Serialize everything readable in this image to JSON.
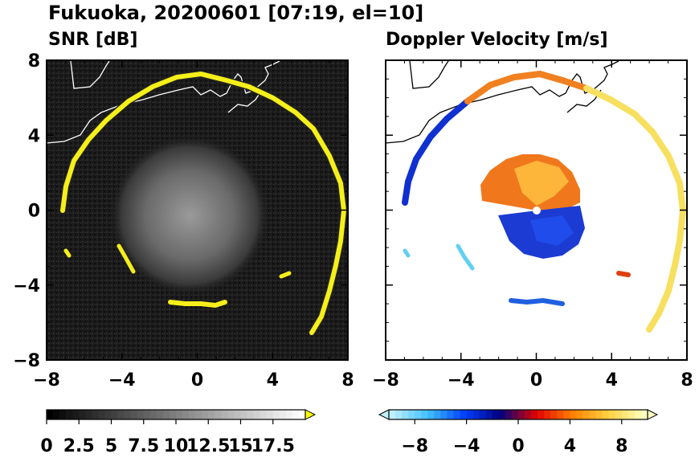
{
  "figure": {
    "title": "Fukuoka, 20200601 [07:19, el=10]"
  },
  "chart_data": [
    {
      "type": "heatmap",
      "title": "SNR [dB]",
      "x_range": [
        -8,
        8
      ],
      "y_range": [
        -8,
        8
      ],
      "x_ticks": [
        -8,
        -4,
        0,
        4,
        8
      ],
      "y_ticks": [
        8,
        4,
        0,
        -4,
        -8
      ],
      "colorbar": {
        "min": 0,
        "max": 20,
        "tick_values": [
          0,
          2.5,
          5,
          7.5,
          10,
          12.5,
          15,
          17.5
        ],
        "tick_labels": [
          "0",
          "2.5",
          "5",
          "7.5",
          "10",
          "12.5",
          "15",
          "17.5"
        ],
        "extend": "max",
        "colors": [
          "#000000",
          "#ffffff",
          "#ffff00"
        ]
      },
      "background_color": "#1a1a1a",
      "echo_color": "#f5ef1a"
    },
    {
      "type": "heatmap",
      "title": "Doppler Velocity [m/s]",
      "x_range": [
        -8,
        8
      ],
      "y_range": [
        -8,
        8
      ],
      "x_ticks": [
        -8,
        -4,
        0,
        4,
        8
      ],
      "y_ticks": [
        8,
        4,
        0,
        -4,
        -8
      ],
      "colorbar": {
        "min": -10,
        "max": 10,
        "tick_values": [
          -8,
          -4,
          0,
          4,
          8
        ],
        "tick_labels": [
          "−8",
          "−4",
          "0",
          "4",
          "8"
        ],
        "extend": "both",
        "colors": [
          "#bff0ff",
          "#40c0ff",
          "#0040ff",
          "#000080",
          "#e00000",
          "#ff8000",
          "#ffd040",
          "#ffffc0"
        ]
      }
    }
  ]
}
